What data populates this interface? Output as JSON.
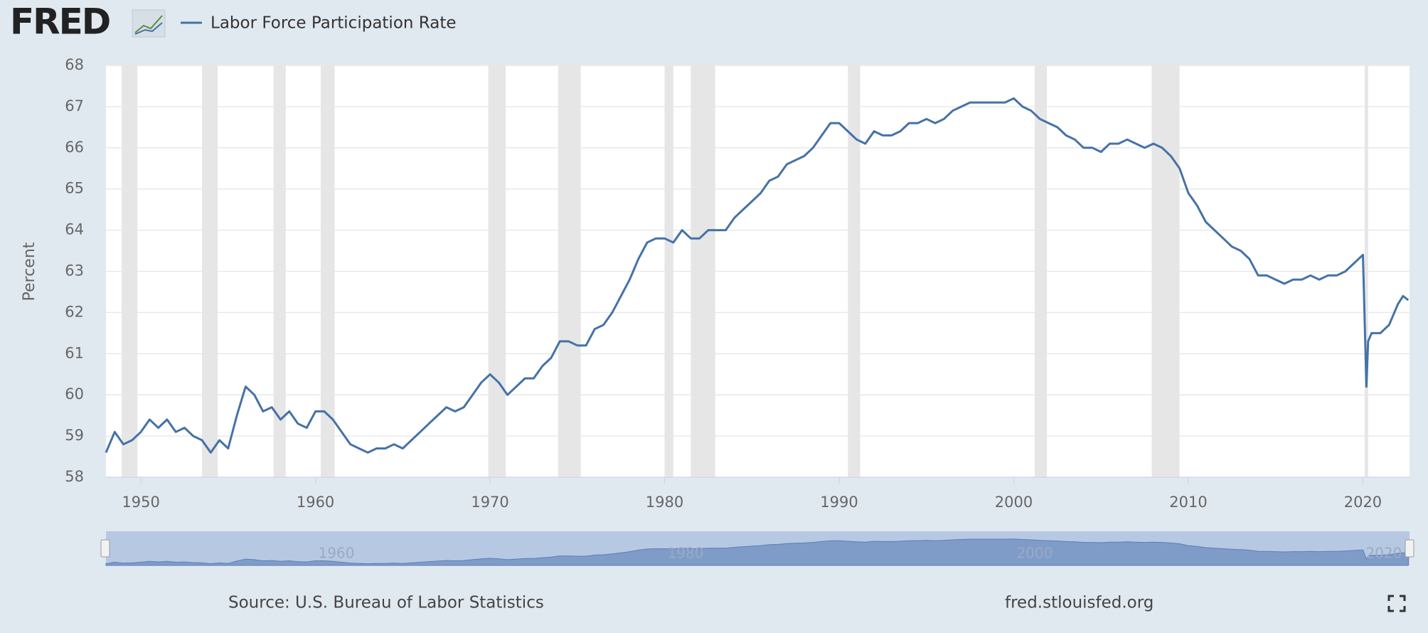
{
  "logo": "FRED",
  "chart_data": {
    "type": "line",
    "ylabel": "Percent",
    "source": "Source: U.S. Bureau of Labor Statistics",
    "link": "fred.stlouisfed.org",
    "xlim": [
      1948,
      2022.67
    ],
    "ylim": [
      58,
      68
    ],
    "xticks": [
      1950,
      1960,
      1970,
      1980,
      1990,
      2000,
      2010,
      2020
    ],
    "yticks": [
      58,
      59,
      60,
      61,
      62,
      63,
      64,
      65,
      66,
      67,
      68
    ],
    "navigator_ticks": [
      1960,
      1980,
      2000,
      2020
    ],
    "grid": true,
    "recessions": [
      [
        1948.9,
        1949.8
      ],
      [
        1953.5,
        1954.4
      ],
      [
        1957.6,
        1958.3
      ],
      [
        1960.3,
        1961.1
      ],
      [
        1969.9,
        1970.9
      ],
      [
        1973.9,
        1975.2
      ],
      [
        1980.0,
        1980.5
      ],
      [
        1981.5,
        1982.9
      ],
      [
        1990.5,
        1991.2
      ],
      [
        2001.2,
        2001.9
      ],
      [
        2007.9,
        2009.5
      ],
      [
        2020.1,
        2020.3
      ]
    ],
    "series": [
      {
        "name": "Labor Force Participation Rate",
        "color": "#4572a7",
        "x": [
          1948,
          1948.5,
          1949,
          1949.5,
          1950,
          1950.5,
          1951,
          1951.5,
          1952,
          1952.5,
          1953,
          1953.5,
          1954,
          1954.5,
          1955,
          1955.5,
          1956,
          1956.5,
          1957,
          1957.5,
          1958,
          1958.5,
          1959,
          1959.5,
          1960,
          1960.5,
          1961,
          1961.5,
          1962,
          1962.5,
          1963,
          1963.5,
          1964,
          1964.5,
          1965,
          1965.5,
          1966,
          1966.5,
          1967,
          1967.5,
          1968,
          1968.5,
          1969,
          1969.5,
          1970,
          1970.5,
          1971,
          1971.5,
          1972,
          1972.5,
          1973,
          1973.5,
          1974,
          1974.5,
          1975,
          1975.5,
          1976,
          1976.5,
          1977,
          1977.5,
          1978,
          1978.5,
          1979,
          1979.5,
          1980,
          1980.5,
          1981,
          1981.5,
          1982,
          1982.5,
          1983,
          1983.5,
          1984,
          1984.5,
          1985,
          1985.5,
          1986,
          1986.5,
          1987,
          1987.5,
          1988,
          1988.5,
          1989,
          1989.5,
          1990,
          1990.5,
          1991,
          1991.5,
          1992,
          1992.5,
          1993,
          1993.5,
          1994,
          1994.5,
          1995,
          1995.5,
          1996,
          1996.5,
          1997,
          1997.5,
          1998,
          1998.5,
          1999,
          1999.5,
          2000,
          2000.5,
          2001,
          2001.5,
          2002,
          2002.5,
          2003,
          2003.5,
          2004,
          2004.5,
          2005,
          2005.5,
          2006,
          2006.5,
          2007,
          2007.5,
          2008,
          2008.5,
          2009,
          2009.5,
          2010,
          2010.5,
          2011,
          2011.5,
          2012,
          2012.5,
          2013,
          2013.5,
          2014,
          2014.5,
          2015,
          2015.5,
          2016,
          2016.5,
          2017,
          2017.5,
          2018,
          2018.5,
          2019,
          2019.5,
          2020,
          2020.2,
          2020.3,
          2020.5,
          2021,
          2021.5,
          2022,
          2022.3,
          2022.6
        ],
        "values": [
          58.6,
          59.1,
          58.8,
          58.9,
          59.1,
          59.4,
          59.2,
          59.4,
          59.1,
          59.2,
          59.0,
          58.9,
          58.6,
          58.9,
          58.7,
          59.5,
          60.2,
          60.0,
          59.6,
          59.7,
          59.4,
          59.6,
          59.3,
          59.2,
          59.6,
          59.6,
          59.4,
          59.1,
          58.8,
          58.7,
          58.6,
          58.7,
          58.7,
          58.8,
          58.7,
          58.9,
          59.1,
          59.3,
          59.5,
          59.7,
          59.6,
          59.7,
          60.0,
          60.3,
          60.5,
          60.3,
          60.0,
          60.2,
          60.4,
          60.4,
          60.7,
          60.9,
          61.3,
          61.3,
          61.2,
          61.2,
          61.6,
          61.7,
          62.0,
          62.4,
          62.8,
          63.3,
          63.7,
          63.8,
          63.8,
          63.7,
          64.0,
          63.8,
          63.8,
          64.0,
          64.0,
          64.0,
          64.3,
          64.5,
          64.7,
          64.9,
          65.2,
          65.3,
          65.6,
          65.7,
          65.8,
          66.0,
          66.3,
          66.6,
          66.6,
          66.4,
          66.2,
          66.1,
          66.4,
          66.3,
          66.3,
          66.4,
          66.6,
          66.6,
          66.7,
          66.6,
          66.7,
          66.9,
          67.0,
          67.1,
          67.1,
          67.1,
          67.1,
          67.1,
          67.2,
          67.0,
          66.9,
          66.7,
          66.6,
          66.5,
          66.3,
          66.2,
          66.0,
          66.0,
          65.9,
          66.1,
          66.1,
          66.2,
          66.1,
          66.0,
          66.1,
          66.0,
          65.8,
          65.5,
          64.9,
          64.6,
          64.2,
          64.0,
          63.8,
          63.6,
          63.5,
          63.3,
          62.9,
          62.9,
          62.8,
          62.7,
          62.8,
          62.8,
          62.9,
          62.8,
          62.9,
          62.9,
          63.0,
          63.2,
          63.4,
          60.2,
          61.3,
          61.5,
          61.5,
          61.7,
          62.2,
          62.4,
          62.3
        ]
      }
    ]
  }
}
